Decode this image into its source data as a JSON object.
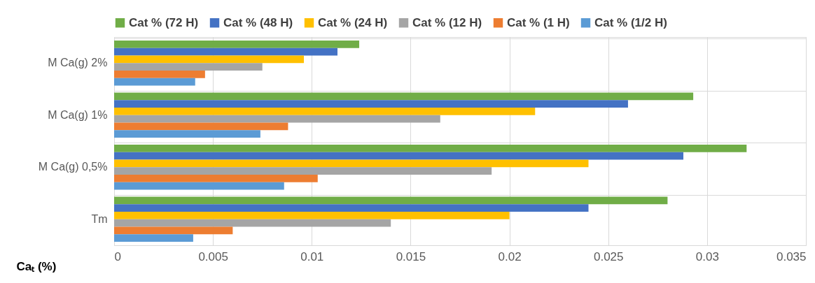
{
  "chart_data": {
    "type": "bar",
    "orientation": "horizontal",
    "xlabel": "Caₜ (%)",
    "categories": [
      "M Ca(g) 2%",
      "M Ca(g) 1%",
      "M Ca(g) 0,5%",
      "Tm"
    ],
    "series": [
      {
        "name": "Cat % (72 H)",
        "color": "#70ad47",
        "values": [
          0.0124,
          0.0293,
          0.032,
          0.028
        ]
      },
      {
        "name": "Cat % (48 H)",
        "color": "#4472c4",
        "values": [
          0.0113,
          0.026,
          0.0288,
          0.024
        ]
      },
      {
        "name": "Cat % (24 H)",
        "color": "#ffc000",
        "values": [
          0.0096,
          0.0213,
          0.024,
          0.02
        ]
      },
      {
        "name": "Cat % (12 H)",
        "color": "#a5a5a5",
        "values": [
          0.0075,
          0.0165,
          0.0191,
          0.014
        ]
      },
      {
        "name": "Cat % (1 H)",
        "color": "#ed7d31",
        "values": [
          0.0046,
          0.0088,
          0.0103,
          0.006
        ]
      },
      {
        "name": "Cat % (1/2 H)",
        "color": "#5b9bd5",
        "values": [
          0.0041,
          0.0074,
          0.0086,
          0.004
        ]
      }
    ],
    "xlim": [
      0,
      0.035
    ],
    "xticks": [
      0,
      0.005,
      0.01,
      0.015,
      0.02,
      0.025,
      0.03,
      0.035
    ],
    "grid": true,
    "legend": "top"
  }
}
